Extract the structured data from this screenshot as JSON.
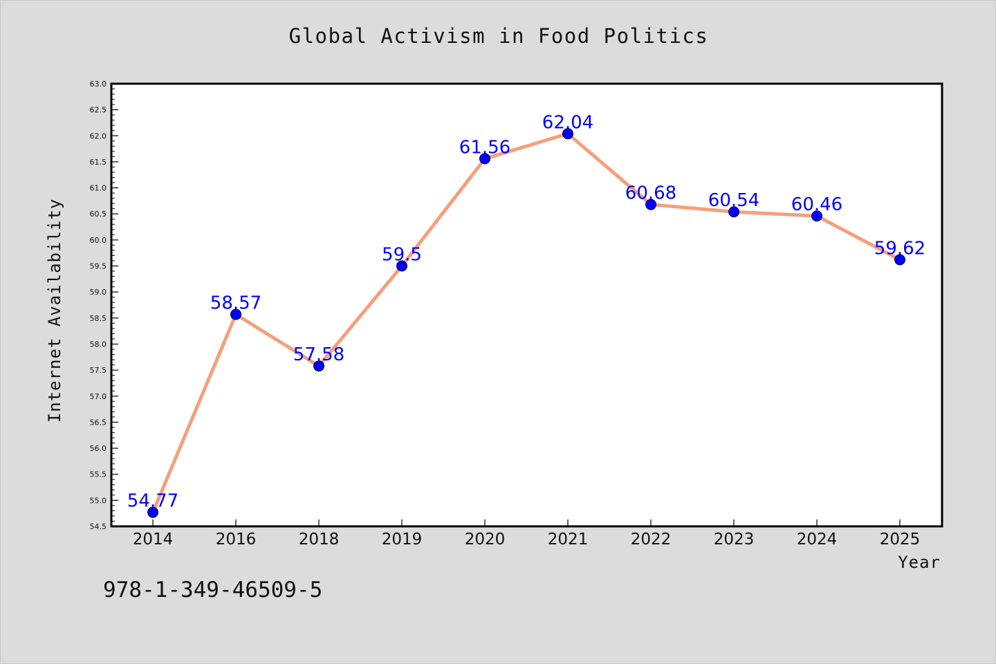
{
  "chart_data": {
    "type": "line",
    "title": "Global Activism in Food Politics",
    "xlabel": "Year",
    "ylabel": "Internet Availability",
    "categories": [
      "2014",
      "2016",
      "2018",
      "2019",
      "2020",
      "2021",
      "2022",
      "2023",
      "2024",
      "2025"
    ],
    "series": [
      {
        "values": [
          54.77,
          58.57,
          57.58,
          59.5,
          61.56,
          62.04,
          60.68,
          60.54,
          60.46,
          59.62
        ],
        "labels": [
          "54.77",
          "58.57",
          "57.58",
          "59.5",
          "61.56",
          "62.04",
          "60.68",
          "60.54",
          "60.46",
          "59.62"
        ],
        "line_color": "#f4a07c",
        "marker_color": "#0000ff"
      }
    ],
    "ylim": [
      54.5,
      63.0
    ],
    "yticks": [
      "54.5",
      "55.0",
      "55.5",
      "56.0",
      "56.5",
      "57.0",
      "57.5",
      "58.0",
      "58.5",
      "59.0",
      "59.5",
      "60.0",
      "60.5",
      "61.0",
      "61.5",
      "62.0",
      "62.5",
      "63.0"
    ],
    "grid": false,
    "legend": "none",
    "colors": {
      "background": "#dcdcdc",
      "plot_background": "#ffffff",
      "label": "#0000ff"
    }
  },
  "footer_code": "978-1-349-46509-5"
}
